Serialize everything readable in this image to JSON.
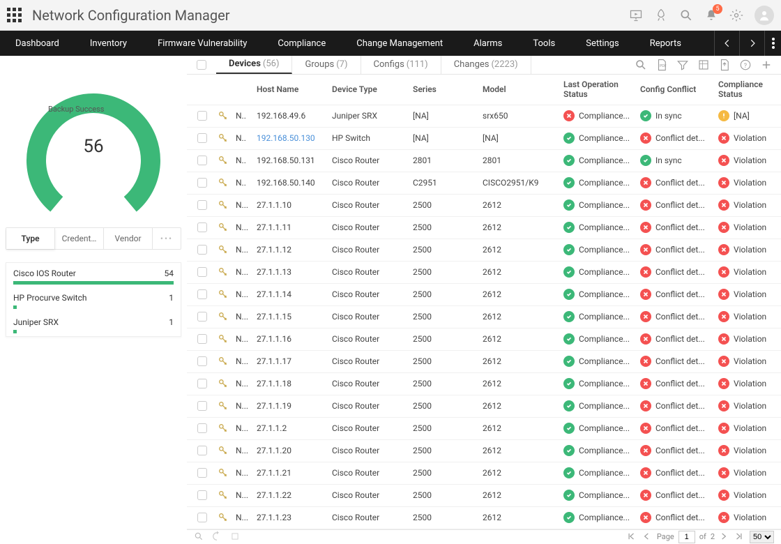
{
  "app": {
    "title": "Network Configuration Manager",
    "notification_count": "5"
  },
  "nav": {
    "items": [
      "Dashboard",
      "Inventory",
      "Firmware Vulnerability",
      "Compliance",
      "Change Management",
      "Alarms",
      "Tools",
      "Settings",
      "Reports"
    ]
  },
  "donut": {
    "label": "Backup Success",
    "value": "56",
    "percent": 100,
    "color": "#3cb878",
    "track_color": "#f0f0f0",
    "start_angle": -230,
    "sweep": 280
  },
  "side_tabs": {
    "items": [
      "Type",
      "Credent…",
      "Vendor"
    ],
    "active": 0
  },
  "breakdown": {
    "items": [
      {
        "label": "Cisco IOS Router",
        "count": "54",
        "pct": 100
      },
      {
        "label": "HP Procurve Switch",
        "count": "1",
        "pct": 2
      },
      {
        "label": "Juniper SRX",
        "count": "1",
        "pct": 2
      }
    ],
    "bar_color": "#3cb878"
  },
  "tabs": {
    "items": [
      {
        "label": "Devices",
        "count": "(56)"
      },
      {
        "label": "Groups",
        "count": "(7)"
      },
      {
        "label": "Configs",
        "count": "(111)"
      },
      {
        "label": "Changes",
        "count": "(2223)"
      }
    ],
    "active": 0
  },
  "table": {
    "columns": [
      "",
      "",
      "",
      "Host Name",
      "Device Type",
      "Series",
      "Model",
      "Last Operation Status",
      "Config Conflict",
      "Compliance Status"
    ],
    "rows": [
      {
        "n": "N..",
        "host": "192.168.49.6",
        "dev": "Juniper SRX",
        "series": "[NA]",
        "model": "srx650",
        "op": {
          "s": "red",
          "t": "Compliance..."
        },
        "conf": {
          "s": "green",
          "t": "In sync"
        },
        "comp": {
          "s": "yellow",
          "t": "[NA]"
        }
      },
      {
        "n": "N..",
        "host": "192.168.50.130",
        "link": true,
        "dev": "HP Switch",
        "series": "[NA]",
        "model": "[NA]",
        "op": {
          "s": "green",
          "t": "Compliance..."
        },
        "conf": {
          "s": "red",
          "t": "Conflict det..."
        },
        "comp": {
          "s": "red",
          "t": "Violation"
        }
      },
      {
        "n": "N..",
        "host": "192.168.50.131",
        "dev": "Cisco Router",
        "series": "2801",
        "model": "2801",
        "op": {
          "s": "green",
          "t": "Compliance..."
        },
        "conf": {
          "s": "green",
          "t": "In sync"
        },
        "comp": {
          "s": "red",
          "t": "Violation"
        }
      },
      {
        "n": "N..",
        "host": "192.168.50.140",
        "dev": "Cisco Router",
        "series": "C2951",
        "model": "CISCO2951/K9",
        "op": {
          "s": "green",
          "t": "Compliance..."
        },
        "conf": {
          "s": "red",
          "t": "Conflict det..."
        },
        "comp": {
          "s": "red",
          "t": "Violation"
        }
      },
      {
        "n": "N...",
        "host": "27.1.1.10",
        "dev": "Cisco Router",
        "series": "2500",
        "model": "2612",
        "op": {
          "s": "green",
          "t": "Compliance..."
        },
        "conf": {
          "s": "red",
          "t": "Conflict det..."
        },
        "comp": {
          "s": "red",
          "t": "Violation"
        }
      },
      {
        "n": "N...",
        "host": "27.1.1.11",
        "dev": "Cisco Router",
        "series": "2500",
        "model": "2612",
        "op": {
          "s": "green",
          "t": "Compliance..."
        },
        "conf": {
          "s": "red",
          "t": "Conflict det..."
        },
        "comp": {
          "s": "red",
          "t": "Violation"
        }
      },
      {
        "n": "N...",
        "host": "27.1.1.12",
        "dev": "Cisco Router",
        "series": "2500",
        "model": "2612",
        "op": {
          "s": "green",
          "t": "Compliance..."
        },
        "conf": {
          "s": "red",
          "t": "Conflict det..."
        },
        "comp": {
          "s": "red",
          "t": "Violation"
        }
      },
      {
        "n": "N...",
        "host": "27.1.1.13",
        "dev": "Cisco Router",
        "series": "2500",
        "model": "2612",
        "op": {
          "s": "green",
          "t": "Compliance..."
        },
        "conf": {
          "s": "red",
          "t": "Conflict det..."
        },
        "comp": {
          "s": "red",
          "t": "Violation"
        }
      },
      {
        "n": "N...",
        "host": "27.1.1.14",
        "dev": "Cisco Router",
        "series": "2500",
        "model": "2612",
        "op": {
          "s": "green",
          "t": "Compliance..."
        },
        "conf": {
          "s": "red",
          "t": "Conflict det..."
        },
        "comp": {
          "s": "red",
          "t": "Violation"
        }
      },
      {
        "n": "N...",
        "host": "27.1.1.15",
        "dev": "Cisco Router",
        "series": "2500",
        "model": "2612",
        "op": {
          "s": "green",
          "t": "Compliance..."
        },
        "conf": {
          "s": "red",
          "t": "Conflict det..."
        },
        "comp": {
          "s": "red",
          "t": "Violation"
        }
      },
      {
        "n": "N...",
        "host": "27.1.1.16",
        "dev": "Cisco Router",
        "series": "2500",
        "model": "2612",
        "op": {
          "s": "green",
          "t": "Compliance..."
        },
        "conf": {
          "s": "red",
          "t": "Conflict det..."
        },
        "comp": {
          "s": "red",
          "t": "Violation"
        }
      },
      {
        "n": "N...",
        "host": "27.1.1.17",
        "dev": "Cisco Router",
        "series": "2500",
        "model": "2612",
        "op": {
          "s": "green",
          "t": "Compliance..."
        },
        "conf": {
          "s": "red",
          "t": "Conflict det..."
        },
        "comp": {
          "s": "red",
          "t": "Violation"
        }
      },
      {
        "n": "N...",
        "host": "27.1.1.18",
        "dev": "Cisco Router",
        "series": "2500",
        "model": "2612",
        "op": {
          "s": "green",
          "t": "Compliance..."
        },
        "conf": {
          "s": "red",
          "t": "Conflict det..."
        },
        "comp": {
          "s": "red",
          "t": "Violation"
        }
      },
      {
        "n": "N...",
        "host": "27.1.1.19",
        "dev": "Cisco Router",
        "series": "2500",
        "model": "2612",
        "op": {
          "s": "green",
          "t": "Compliance..."
        },
        "conf": {
          "s": "red",
          "t": "Conflict det..."
        },
        "comp": {
          "s": "red",
          "t": "Violation"
        }
      },
      {
        "n": "N...",
        "host": "27.1.1.2",
        "dev": "Cisco Router",
        "series": "2500",
        "model": "2612",
        "op": {
          "s": "green",
          "t": "Compliance..."
        },
        "conf": {
          "s": "red",
          "t": "Conflict det..."
        },
        "comp": {
          "s": "red",
          "t": "Violation"
        }
      },
      {
        "n": "N...",
        "host": "27.1.1.20",
        "dev": "Cisco Router",
        "series": "2500",
        "model": "2612",
        "op": {
          "s": "green",
          "t": "Compliance..."
        },
        "conf": {
          "s": "red",
          "t": "Conflict det..."
        },
        "comp": {
          "s": "red",
          "t": "Violation"
        }
      },
      {
        "n": "N...",
        "host": "27.1.1.21",
        "dev": "Cisco Router",
        "series": "2500",
        "model": "2612",
        "op": {
          "s": "green",
          "t": "Compliance..."
        },
        "conf": {
          "s": "red",
          "t": "Conflict det..."
        },
        "comp": {
          "s": "red",
          "t": "Violation"
        }
      },
      {
        "n": "N...",
        "host": "27.1.1.22",
        "dev": "Cisco Router",
        "series": "2500",
        "model": "2612",
        "op": {
          "s": "green",
          "t": "Compliance..."
        },
        "conf": {
          "s": "red",
          "t": "Conflict det..."
        },
        "comp": {
          "s": "red",
          "t": "Violation"
        }
      },
      {
        "n": "N...",
        "host": "27.1.1.23",
        "dev": "Cisco Router",
        "series": "2500",
        "model": "2612",
        "op": {
          "s": "green",
          "t": "Compliance..."
        },
        "conf": {
          "s": "red",
          "t": "Conflict det..."
        },
        "comp": {
          "s": "red",
          "t": "Violation"
        }
      }
    ]
  },
  "pagination": {
    "page_label": "Page",
    "page": "1",
    "of_label": "of",
    "total": "2",
    "page_size": "50"
  },
  "colors": {
    "green": "#3cb878",
    "red": "#f45151",
    "yellow": "#f5b942"
  }
}
